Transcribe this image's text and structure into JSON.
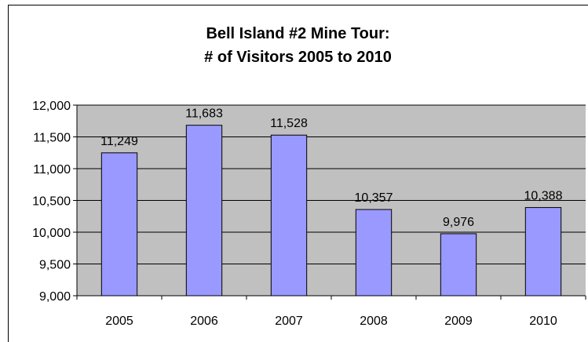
{
  "chart_data": {
    "type": "bar",
    "title_line1": "Bell Island #2 Mine Tour:",
    "title_line2": "# of Visitors 2005 to 2010",
    "xlabel": "",
    "ylabel": "",
    "categories": [
      "2005",
      "2006",
      "2007",
      "2008",
      "2009",
      "2010"
    ],
    "values": [
      11249,
      11683,
      11528,
      10357,
      9976,
      10388
    ],
    "data_labels": [
      "11,249",
      "11,683",
      "11,528",
      "10,357",
      "9,976",
      "10,388"
    ],
    "ylim": [
      9000,
      12000
    ],
    "yticks": [
      9000,
      9500,
      10000,
      10500,
      11000,
      11500,
      12000
    ],
    "ytick_labels": [
      "9,000",
      "9,500",
      "10,000",
      "10,500",
      "11,000",
      "11,500",
      "12,000"
    ],
    "grid": true,
    "legend": "none",
    "colors": {
      "plot_background": "#c0c0c0",
      "bar_fill": "#9999ff",
      "bar_stroke": "#000000",
      "gridline": "#000000"
    }
  }
}
